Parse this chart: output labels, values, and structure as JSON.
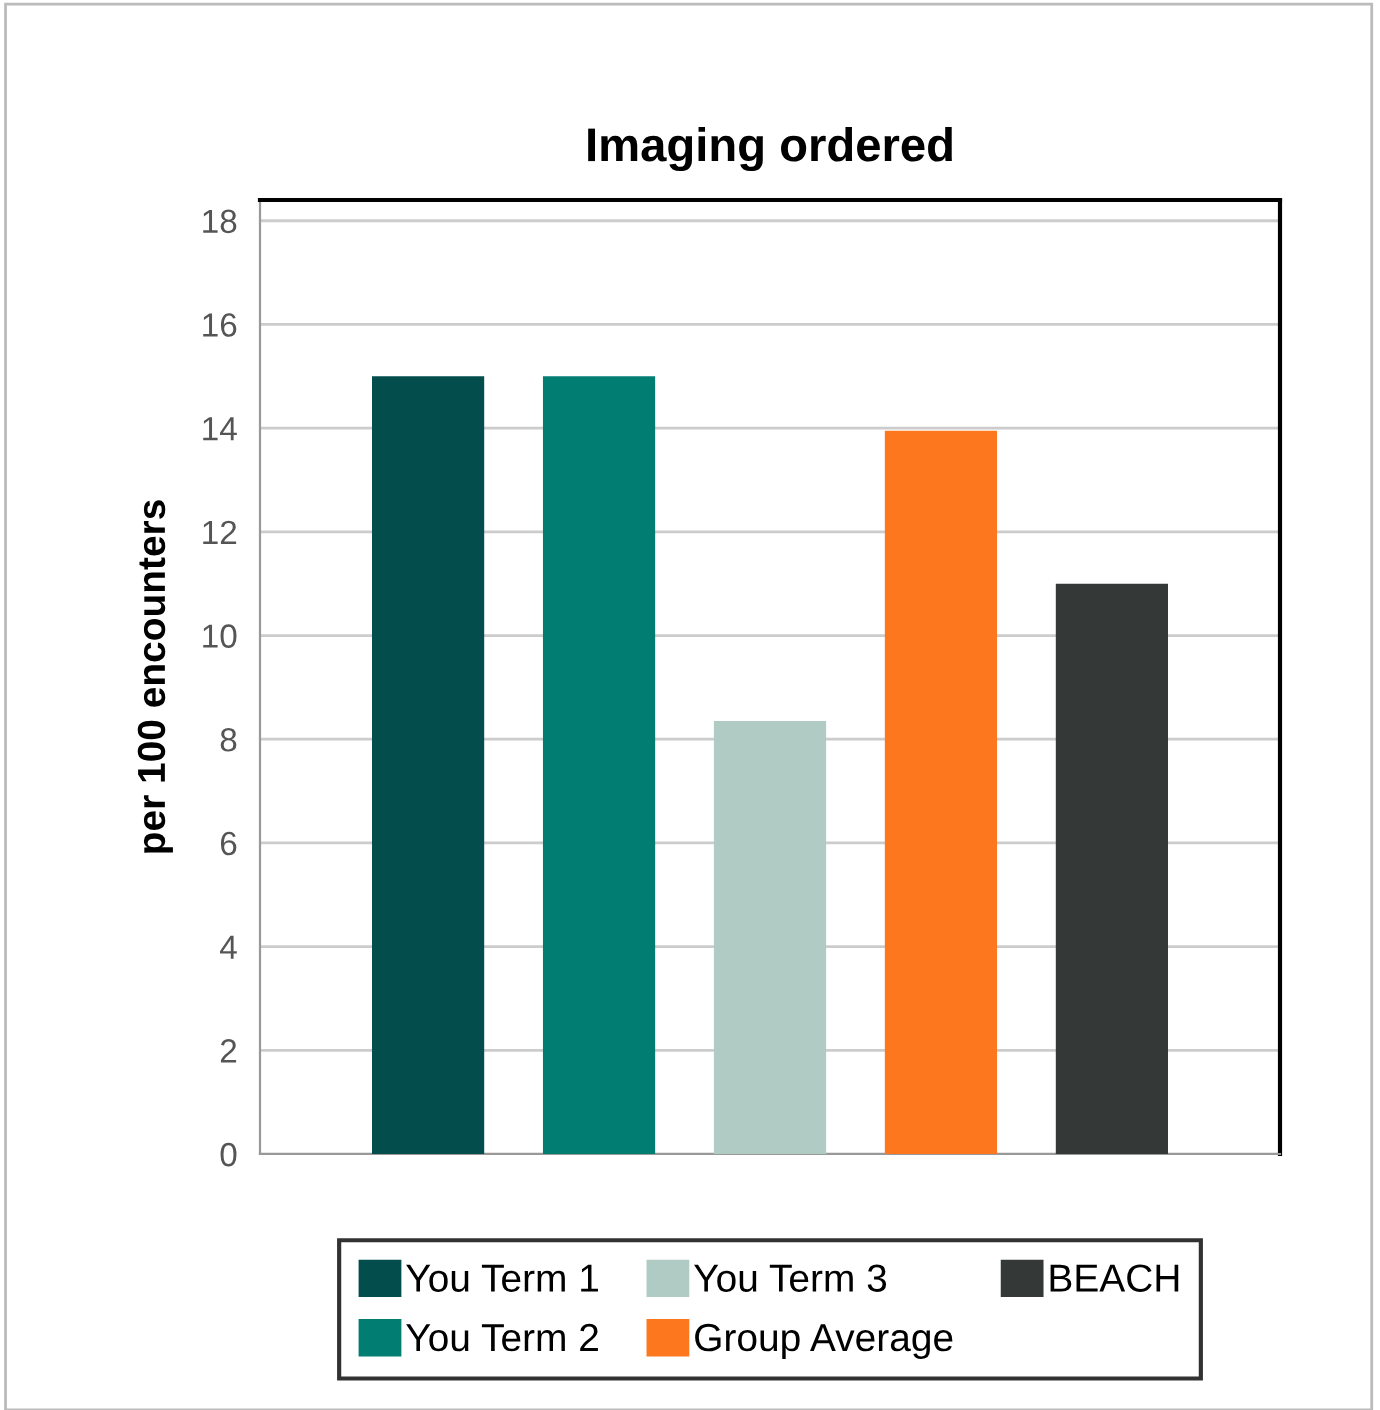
{
  "chart_data": {
    "type": "bar",
    "title": "Imaging ordered",
    "ylabel": "per 100 encounters",
    "categories": [
      null
    ],
    "series": [
      {
        "name": "You Term 1",
        "color": "#034d4d",
        "values": [
          15.0
        ]
      },
      {
        "name": "You Term 2",
        "color": "#027d72",
        "values": [
          15.0
        ]
      },
      {
        "name": "You Term 3",
        "color": "#b0cbc3",
        "values": [
          8.35
        ]
      },
      {
        "name": "Group Average",
        "color": "#fd771f",
        "values": [
          13.95
        ]
      },
      {
        "name": "BEACH",
        "color": "#343837",
        "values": [
          11.0
        ]
      }
    ],
    "ylim": [
      0,
      18.4
    ],
    "yticks": [
      0,
      2,
      4,
      6,
      8,
      10,
      12,
      14,
      16,
      18
    ],
    "grid": "y",
    "legend": "bottom"
  }
}
